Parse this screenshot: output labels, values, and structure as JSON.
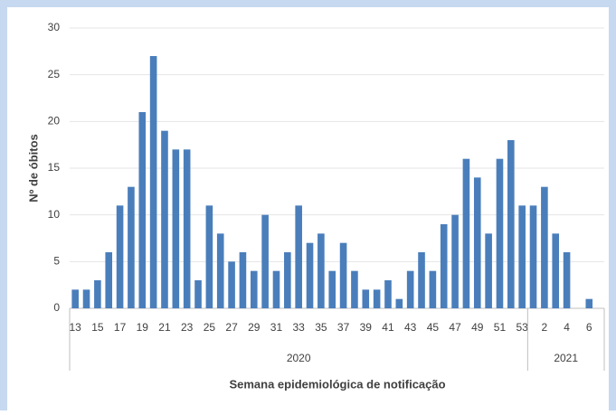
{
  "chart_data": {
    "type": "bar",
    "x_label": "Semana epidemiológica de notificação",
    "y_label": "Nº de óbitos",
    "categories": [
      "13",
      null,
      "15",
      null,
      "17",
      null,
      "19",
      null,
      "21",
      null,
      "23",
      null,
      "25",
      null,
      "27",
      null,
      "29",
      null,
      "31",
      null,
      "33",
      null,
      "35",
      null,
      "37",
      null,
      "39",
      null,
      "41",
      null,
      "43",
      null,
      "45",
      null,
      "47",
      null,
      "49",
      null,
      "51",
      null,
      "53",
      null,
      "2",
      null,
      "4",
      null,
      "6"
    ],
    "values": [
      2,
      2,
      3,
      6,
      11,
      13,
      21,
      27,
      19,
      17,
      17,
      3,
      11,
      8,
      5,
      6,
      4,
      10,
      4,
      6,
      11,
      7,
      8,
      4,
      7,
      4,
      2,
      2,
      3,
      1,
      4,
      6,
      4,
      9,
      10,
      16,
      14,
      8,
      16,
      18,
      11,
      11,
      13,
      8,
      6,
      0,
      1
    ],
    "groups": [
      {
        "label": "2020",
        "count": 41
      },
      {
        "label": "2021",
        "count": 6
      }
    ],
    "color": "#4a7ebb",
    "ylim": [
      0,
      30
    ],
    "yticks": [
      0,
      5,
      10,
      15,
      20,
      25,
      30
    ],
    "grid": true
  }
}
